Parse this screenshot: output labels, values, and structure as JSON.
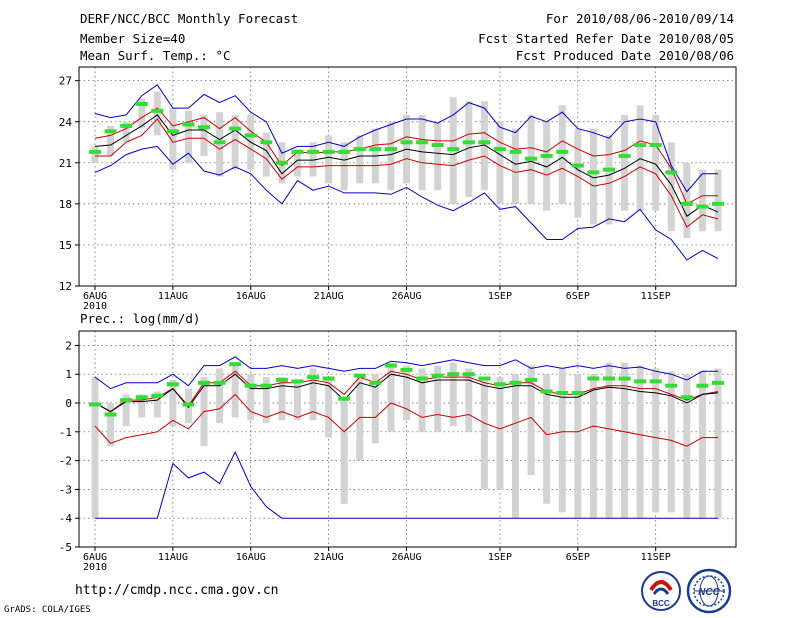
{
  "header": {
    "title": "DERF/NCC/BCC Monthly Forecast",
    "member": "Member Size=40",
    "variable": "Mean Surf. Temp.: °C",
    "period": "For 2010/08/06-2010/09/14",
    "started": "Fcst Started Refer Date 2010/08/05",
    "produced": "Fcst Produced Date 2010/08/06"
  },
  "footer": {
    "url": "http://cmdp.ncc.cma.gov.cn",
    "credit": "GrADS: COLA/IGES",
    "logo_bcc_text": "BCC",
    "logo_ncc_text": "NCC"
  },
  "colors": {
    "box": "#d3d3d3",
    "median": "#33dd33",
    "upper_lower": "#0000cc",
    "quartile": "#cc0000",
    "mean": "#000000",
    "grid": "#555555"
  },
  "chart_data": [
    {
      "type": "line",
      "title": "Mean Surf. Temp.: °C",
      "xlabel": "",
      "ylabel": "",
      "x_start_day": 1,
      "xlim": [
        0,
        40
      ],
      "ylim": [
        12,
        28
      ],
      "yticks": [
        12,
        15,
        18,
        21,
        24,
        27
      ],
      "xticks": [
        {
          "x": 1,
          "label": "6AUG",
          "sub": "2010"
        },
        {
          "x": 6,
          "label": "11AUG"
        },
        {
          "x": 11,
          "label": "16AUG"
        },
        {
          "x": 16,
          "label": "21AUG"
        },
        {
          "x": 21,
          "label": "26AUG"
        },
        {
          "x": 27,
          "label": "1SEP"
        },
        {
          "x": 32,
          "label": "6SEP"
        },
        {
          "x": 37,
          "label": "11SEP"
        }
      ],
      "boxes_low": [
        21.0,
        21.5,
        22.5,
        23.5,
        23.0,
        20.5,
        21.0,
        21.5,
        20.0,
        20.5,
        20.5,
        20.0,
        19.5,
        20.0,
        20.0,
        19.5,
        19.0,
        19.5,
        19.5,
        19.0,
        19.5,
        19.0,
        19.0,
        18.0,
        18.5,
        19.0,
        18.0,
        18.0,
        18.0,
        17.5,
        18.0,
        17.0,
        16.5,
        16.5,
        17.5,
        17.5,
        17.5,
        16.0,
        15.5,
        16.0,
        16.0
      ],
      "boxes_high": [
        22.2,
        23.7,
        24.0,
        25.7,
        26.2,
        25.0,
        24.8,
        24.5,
        24.7,
        24.5,
        24.5,
        23.2,
        22.5,
        22.0,
        22.5,
        23.0,
        22.5,
        23.0,
        23.5,
        24.0,
        24.5,
        24.5,
        24.0,
        25.8,
        25.5,
        25.5,
        24.0,
        23.5,
        24.5,
        24.0,
        25.2,
        23.5,
        23.5,
        23.0,
        24.5,
        25.2,
        24.5,
        22.5,
        21.0,
        20.5,
        20.5
      ],
      "median": [
        21.8,
        23.3,
        23.7,
        25.3,
        24.8,
        23.3,
        23.8,
        23.6,
        22.5,
        23.5,
        23.0,
        22.5,
        21.0,
        21.8,
        21.8,
        21.8,
        21.8,
        22.0,
        22.0,
        22.0,
        22.5,
        22.5,
        22.3,
        22.0,
        22.5,
        22.5,
        22.0,
        21.8,
        21.3,
        21.5,
        21.8,
        20.8,
        20.3,
        20.5,
        21.5,
        22.3,
        22.3,
        20.3,
        18.0,
        17.8,
        18.0
      ],
      "series": [
        {
          "name": "upper",
          "color": "#0000cc",
          "values": [
            24.6,
            24.3,
            24.5,
            25.9,
            26.7,
            25.0,
            25.0,
            26.0,
            25.4,
            25.9,
            24.7,
            24.0,
            21.7,
            22.2,
            22.2,
            22.5,
            22.2,
            22.9,
            23.4,
            23.8,
            24.2,
            24.2,
            23.9,
            24.5,
            25.4,
            25.0,
            23.6,
            23.2,
            24.4,
            24.0,
            24.7,
            23.5,
            23.2,
            22.8,
            24.0,
            24.2,
            24.0,
            20.8,
            18.9,
            20.2,
            20.2
          ]
        },
        {
          "name": "upper-quartile",
          "color": "#cc0000",
          "values": [
            22.8,
            23.0,
            23.5,
            24.3,
            25.0,
            23.7,
            24.0,
            24.3,
            23.5,
            24.3,
            23.3,
            22.5,
            20.8,
            21.8,
            21.7,
            21.8,
            21.8,
            22.0,
            22.3,
            22.4,
            22.9,
            22.7,
            22.6,
            22.6,
            23.1,
            23.2,
            22.5,
            22.0,
            22.1,
            21.8,
            22.6,
            22.0,
            21.5,
            21.6,
            21.9,
            22.6,
            22.3,
            20.6,
            18.0,
            18.6,
            18.6
          ]
        },
        {
          "name": "mean",
          "color": "#000000",
          "values": [
            22.2,
            22.3,
            23.0,
            23.7,
            24.5,
            23.0,
            23.4,
            23.4,
            22.7,
            23.4,
            22.5,
            21.9,
            20.2,
            21.2,
            21.2,
            21.4,
            21.2,
            21.5,
            21.5,
            21.6,
            22.0,
            21.8,
            21.7,
            21.6,
            22.1,
            22.3,
            21.6,
            20.9,
            21.1,
            20.7,
            21.4,
            20.5,
            19.9,
            20.1,
            20.6,
            21.3,
            20.9,
            19.4,
            17.1,
            17.9,
            17.4
          ]
        },
        {
          "name": "lower-quartile",
          "color": "#cc0000",
          "values": [
            21.5,
            21.5,
            22.5,
            23.0,
            24.2,
            22.5,
            22.8,
            22.8,
            22.0,
            22.7,
            22.0,
            21.3,
            19.8,
            20.7,
            20.7,
            20.8,
            20.8,
            20.8,
            20.8,
            20.9,
            21.3,
            21.0,
            20.9,
            20.8,
            21.2,
            21.5,
            20.8,
            20.3,
            20.5,
            20.1,
            20.6,
            20.0,
            19.3,
            19.5,
            20.0,
            20.7,
            20.2,
            18.6,
            16.3,
            17.2,
            16.9
          ]
        },
        {
          "name": "lower",
          "color": "#0000cc",
          "values": [
            20.3,
            20.8,
            21.6,
            22.0,
            22.2,
            20.9,
            21.7,
            20.4,
            20.1,
            20.7,
            20.2,
            19.0,
            18.0,
            19.7,
            19.0,
            19.3,
            18.8,
            18.8,
            18.8,
            18.7,
            19.2,
            18.5,
            17.9,
            17.5,
            18.1,
            18.8,
            17.6,
            17.8,
            16.6,
            15.4,
            15.4,
            16.2,
            16.3,
            16.9,
            16.7,
            17.6,
            16.1,
            15.4,
            13.9,
            14.6,
            14.0
          ]
        }
      ]
    },
    {
      "type": "line",
      "title": "Prec.: log(mm/d)",
      "xlabel": "",
      "ylabel": "",
      "x_start_day": 1,
      "xlim": [
        0,
        40
      ],
      "ylim": [
        -5,
        2.5
      ],
      "yticks": [
        -5,
        -4,
        -3,
        -2,
        -1,
        0,
        1,
        2
      ],
      "xticks": [
        {
          "x": 1,
          "label": "6AUG",
          "sub": "2010"
        },
        {
          "x": 6,
          "label": "11AUG"
        },
        {
          "x": 11,
          "label": "16AUG"
        },
        {
          "x": 16,
          "label": "21AUG"
        },
        {
          "x": 21,
          "label": "26AUG"
        },
        {
          "x": 27,
          "label": "1SEP"
        },
        {
          "x": 32,
          "label": "6SEP"
        },
        {
          "x": 37,
          "label": "11SEP"
        }
      ],
      "boxes_low": [
        -4.0,
        -1.5,
        -0.8,
        -0.5,
        -0.5,
        -0.8,
        -0.7,
        -1.5,
        -0.7,
        -0.5,
        -0.6,
        -0.7,
        -0.6,
        -0.6,
        -0.6,
        -1.2,
        -3.5,
        -2.0,
        -1.4,
        -1.0,
        -0.6,
        -1.0,
        -1.0,
        -0.8,
        -1.0,
        -3.0,
        -3.0,
        -4.0,
        -2.5,
        -3.5,
        -3.8,
        -4.0,
        -4.0,
        -4.0,
        -4.0,
        -4.0,
        -3.8,
        -3.8,
        -4.0,
        -4.0,
        -4.0
      ],
      "boxes_high": [
        0.9,
        0.0,
        0.3,
        0.3,
        0.4,
        0.8,
        0.5,
        0.9,
        1.2,
        1.4,
        1.0,
        0.9,
        0.9,
        0.7,
        1.2,
        0.8,
        0.2,
        1.0,
        1.0,
        1.4,
        1.3,
        1.2,
        1.3,
        1.4,
        1.2,
        0.8,
        0.9,
        1.0,
        1.3,
        1.0,
        1.2,
        1.0,
        1.0,
        1.4,
        1.4,
        1.3,
        1.2,
        1.1,
        1.0,
        1.1,
        1.2
      ],
      "median": [
        -0.05,
        -0.4,
        0.1,
        0.2,
        0.25,
        0.65,
        -0.05,
        0.7,
        0.7,
        1.35,
        0.6,
        0.6,
        0.8,
        0.75,
        0.9,
        0.85,
        0.15,
        0.95,
        0.7,
        1.3,
        1.15,
        0.85,
        0.95,
        1.0,
        1.0,
        0.85,
        0.65,
        0.7,
        0.8,
        0.4,
        0.35,
        0.35,
        0.85,
        0.85,
        0.85,
        0.75,
        0.75,
        0.6,
        0.2,
        0.6,
        0.7
      ],
      "series": [
        {
          "name": "upper",
          "color": "#0000cc",
          "values": [
            0.9,
            0.5,
            0.7,
            0.7,
            0.7,
            1.0,
            0.6,
            1.3,
            1.3,
            1.6,
            1.2,
            1.2,
            1.3,
            1.2,
            1.3,
            1.2,
            1.1,
            1.2,
            1.2,
            1.45,
            1.4,
            1.3,
            1.4,
            1.5,
            1.4,
            1.3,
            1.3,
            1.5,
            1.2,
            1.3,
            1.2,
            1.3,
            1.2,
            1.3,
            1.2,
            1.25,
            1.1,
            1.0,
            0.8,
            1.1,
            1.1
          ]
        },
        {
          "name": "upper-quartile",
          "color": "#cc0000",
          "values": [
            0.0,
            -0.3,
            0.1,
            0.1,
            0.2,
            0.5,
            -0.1,
            0.7,
            0.7,
            1.1,
            0.6,
            0.6,
            0.7,
            0.7,
            0.8,
            0.7,
            0.3,
            0.9,
            0.7,
            1.1,
            1.0,
            0.8,
            0.9,
            0.9,
            0.9,
            0.7,
            0.6,
            0.7,
            0.7,
            0.4,
            0.3,
            0.3,
            0.5,
            0.6,
            0.6,
            0.5,
            0.5,
            0.3,
            0.1,
            0.3,
            0.4
          ]
        },
        {
          "name": "mean",
          "color": "#000000",
          "values": [
            0.0,
            -0.3,
            0.05,
            0.05,
            0.1,
            0.5,
            -0.15,
            0.6,
            0.6,
            1.0,
            0.5,
            0.5,
            0.6,
            0.55,
            0.7,
            0.6,
            0.1,
            0.7,
            0.55,
            1.0,
            0.9,
            0.7,
            0.8,
            0.8,
            0.8,
            0.6,
            0.5,
            0.6,
            0.6,
            0.3,
            0.2,
            0.2,
            0.45,
            0.55,
            0.5,
            0.4,
            0.35,
            0.25,
            0.0,
            0.3,
            0.35
          ]
        },
        {
          "name": "lower-quartile",
          "color": "#cc0000",
          "values": [
            -0.8,
            -1.4,
            -1.2,
            -1.1,
            -1.0,
            -0.6,
            -0.9,
            -0.3,
            -0.2,
            0.3,
            -0.3,
            -0.5,
            -0.3,
            -0.5,
            -0.3,
            -0.5,
            -1.0,
            -0.5,
            -0.5,
            0.0,
            -0.2,
            -0.5,
            -0.4,
            -0.5,
            -0.4,
            -0.7,
            -0.9,
            -0.7,
            -0.5,
            -1.1,
            -1.0,
            -1.0,
            -0.8,
            -0.9,
            -1.0,
            -1.1,
            -1.2,
            -1.3,
            -1.5,
            -1.2,
            -1.2
          ]
        },
        {
          "name": "lower",
          "color": "#0000cc",
          "values": [
            -4.0,
            -4.0,
            -4.0,
            -4.0,
            -4.0,
            -2.1,
            -2.6,
            -2.4,
            -2.8,
            -1.7,
            -2.9,
            -3.6,
            -4.0,
            -4.0,
            -4.0,
            -4.0,
            -4.0,
            -4.0,
            -4.0,
            -4.0,
            -4.0,
            -4.0,
            -4.0,
            -4.0,
            -4.0,
            -4.0,
            -4.0,
            -4.0,
            -4.0,
            -4.0,
            -4.0,
            -4.0,
            -4.0,
            -4.0,
            -4.0,
            -4.0,
            -4.0,
            -4.0,
            -4.0,
            -4.0,
            -4.0
          ]
        }
      ]
    }
  ]
}
